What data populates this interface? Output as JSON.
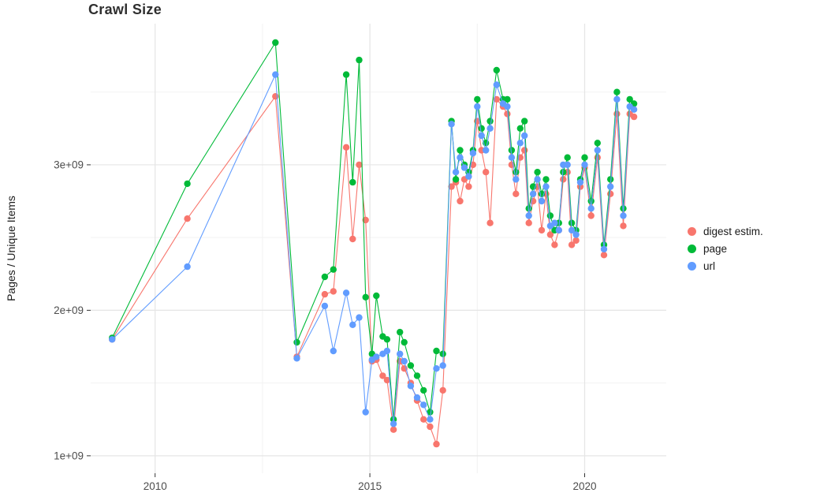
{
  "chart_data": {
    "type": "line",
    "title": "Crawl Size",
    "xlabel": "",
    "ylabel": "Pages / Unique Items",
    "x_unit": "year (decimal)",
    "xlim": [
      2008.5,
      2021.9
    ],
    "ylim_e9": [
      0.88,
      3.97
    ],
    "x_ticks": [
      2010,
      2015,
      2020
    ],
    "minor_x_ticks": [
      2012.5,
      2017.5
    ],
    "y_ticks": [
      {
        "value_e9": 1,
        "label": "1e+09"
      },
      {
        "value_e9": 2,
        "label": "2e+09"
      },
      {
        "value_e9": 3,
        "label": "3e+09"
      }
    ],
    "minor_y_ticks_e9": [
      1.5,
      2.5,
      3.5
    ],
    "grid": true,
    "legend_position": "right",
    "marker": "point",
    "x": [
      2009.0,
      2010.75,
      2012.8,
      2013.3,
      2013.95,
      2014.15,
      2014.45,
      2014.6,
      2014.75,
      2014.9,
      2015.05,
      2015.15,
      2015.3,
      2015.4,
      2015.55,
      2015.7,
      2015.8,
      2015.95,
      2016.1,
      2016.25,
      2016.4,
      2016.55,
      2016.7,
      2016.9,
      2017.0,
      2017.1,
      2017.2,
      2017.3,
      2017.4,
      2017.5,
      2017.6,
      2017.7,
      2017.8,
      2017.95,
      2018.1,
      2018.2,
      2018.3,
      2018.4,
      2018.5,
      2018.6,
      2018.7,
      2018.8,
      2018.9,
      2019.0,
      2019.1,
      2019.2,
      2019.3,
      2019.4,
      2019.5,
      2019.6,
      2019.7,
      2019.8,
      2019.9,
      2020.0,
      2020.15,
      2020.3,
      2020.45,
      2020.6,
      2020.75,
      2020.9,
      2021.05,
      2021.15
    ],
    "series": [
      {
        "name": "digest estim.",
        "color": "#F8766D",
        "values_e9": [
          1.8,
          2.63,
          3.47,
          1.68,
          2.11,
          2.13,
          3.12,
          2.49,
          3.0,
          2.62,
          1.65,
          1.66,
          1.55,
          1.52,
          1.18,
          1.65,
          1.6,
          1.5,
          1.38,
          1.25,
          1.2,
          1.08,
          1.45,
          2.85,
          2.88,
          2.75,
          2.9,
          2.85,
          3.0,
          3.3,
          3.1,
          2.95,
          2.6,
          3.45,
          3.4,
          3.35,
          3.0,
          2.8,
          3.05,
          3.1,
          2.6,
          2.75,
          2.85,
          2.55,
          2.8,
          2.52,
          2.45,
          2.55,
          2.9,
          2.95,
          2.45,
          2.48,
          2.85,
          2.98,
          2.65,
          3.05,
          2.38,
          2.8,
          3.35,
          2.58,
          3.35,
          3.33
        ]
      },
      {
        "name": "page",
        "color": "#00BA38",
        "values_e9": [
          1.81,
          2.87,
          3.84,
          1.78,
          2.23,
          2.28,
          3.62,
          2.88,
          3.72,
          2.09,
          1.7,
          2.1,
          1.82,
          1.8,
          1.25,
          1.85,
          1.78,
          1.62,
          1.55,
          1.45,
          1.3,
          1.72,
          1.7,
          3.3,
          2.9,
          3.1,
          3.0,
          2.95,
          3.1,
          3.45,
          3.25,
          3.15,
          3.3,
          3.65,
          3.45,
          3.45,
          3.1,
          2.95,
          3.25,
          3.3,
          2.7,
          2.85,
          2.95,
          2.8,
          2.9,
          2.65,
          2.55,
          2.6,
          2.95,
          3.05,
          2.6,
          2.55,
          2.9,
          3.05,
          2.75,
          3.15,
          2.45,
          2.9,
          3.5,
          2.7,
          3.45,
          3.42
        ]
      },
      {
        "name": "url",
        "color": "#619CFF",
        "values_e9": [
          1.8,
          2.3,
          3.62,
          1.67,
          2.03,
          1.72,
          2.12,
          1.9,
          1.95,
          1.3,
          1.66,
          1.68,
          1.7,
          1.72,
          1.22,
          1.7,
          1.65,
          1.48,
          1.4,
          1.35,
          1.25,
          1.6,
          1.62,
          3.28,
          2.95,
          3.05,
          2.98,
          2.92,
          3.08,
          3.4,
          3.2,
          3.1,
          3.25,
          3.55,
          3.42,
          3.4,
          3.05,
          2.9,
          3.15,
          3.2,
          2.65,
          2.8,
          2.9,
          2.75,
          2.85,
          2.58,
          2.6,
          2.55,
          3.0,
          3.0,
          2.55,
          2.52,
          2.88,
          3.0,
          2.7,
          3.1,
          2.42,
          2.85,
          3.45,
          2.65,
          3.4,
          3.38
        ]
      }
    ],
    "style": {
      "major_grid_color": "#e5e5e5",
      "minor_grid_color": "#f2f2f2",
      "tick_color": "#333333",
      "tick_label_color": "#4d4d4d",
      "background": "#ffffff"
    }
  }
}
